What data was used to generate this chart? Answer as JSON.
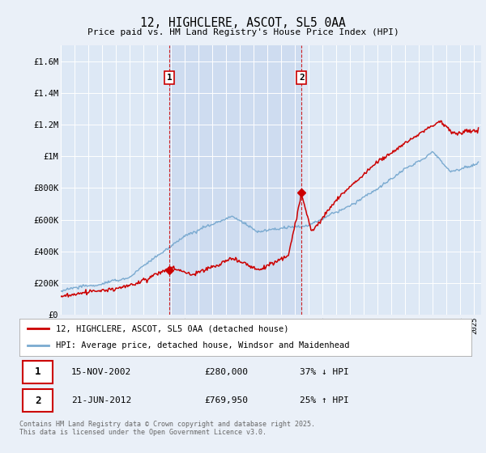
{
  "title": "12, HIGHCLERE, ASCOT, SL5 0AA",
  "subtitle": "Price paid vs. HM Land Registry's House Price Index (HPI)",
  "background_color": "#eaf0f8",
  "plot_bg_color": "#dde8f5",
  "shade_color": "#c8d8ee",
  "red_color": "#cc0000",
  "blue_color": "#7aaad0",
  "vline_color": "#cc0000",
  "sale1_year": 2002.88,
  "sale1_price": 280000,
  "sale1_label": "1",
  "sale2_year": 2012.47,
  "sale2_price": 769950,
  "sale2_label": "2",
  "ylim": [
    0,
    1700000
  ],
  "xlim_start": 1995,
  "xlim_end": 2025.5,
  "legend_line1": "12, HIGHCLERE, ASCOT, SL5 0AA (detached house)",
  "legend_line2": "HPI: Average price, detached house, Windsor and Maidenhead",
  "table_row1_num": "1",
  "table_row1_date": "15-NOV-2002",
  "table_row1_price": "£280,000",
  "table_row1_hpi": "37% ↓ HPI",
  "table_row2_num": "2",
  "table_row2_date": "21-JUN-2012",
  "table_row2_price": "£769,950",
  "table_row2_hpi": "25% ↑ HPI",
  "footer": "Contains HM Land Registry data © Crown copyright and database right 2025.\nThis data is licensed under the Open Government Licence v3.0.",
  "yticks": [
    0,
    200000,
    400000,
    600000,
    800000,
    1000000,
    1200000,
    1400000,
    1600000
  ],
  "ytick_labels": [
    "£0",
    "£200K",
    "£400K",
    "£600K",
    "£800K",
    "£1M",
    "£1.2M",
    "£1.4M",
    "£1.6M"
  ]
}
